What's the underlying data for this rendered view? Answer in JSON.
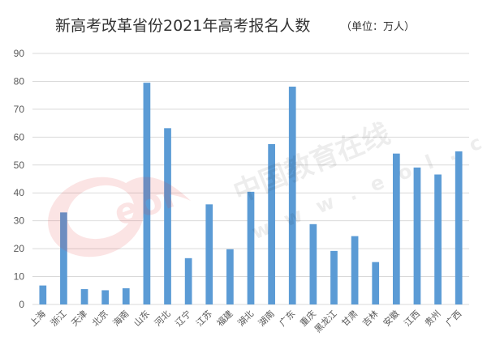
{
  "chart_data": {
    "type": "bar",
    "title": "新高考改革省份2021年高考报名人数",
    "unit": "（单位：万人）",
    "categories": [
      "上海",
      "浙江",
      "天津",
      "北京",
      "海南",
      "山东",
      "河北",
      "辽宁",
      "江苏",
      "福建",
      "湖北",
      "湖南",
      "广东",
      "重庆",
      "黑龙江",
      "甘肃",
      "吉林",
      "安徽",
      "江西",
      "贵州",
      "广西"
    ],
    "values": [
      6.8,
      33.0,
      5.5,
      5.1,
      5.8,
      79.5,
      63.2,
      16.6,
      35.9,
      19.8,
      40.4,
      57.5,
      78.1,
      28.8,
      19.2,
      24.5,
      15.2,
      54.1,
      49.1,
      46.6,
      54.9
    ],
    "ylim": [
      0,
      90
    ],
    "yticks": [
      0,
      10,
      20,
      30,
      40,
      50,
      60,
      70,
      80,
      90
    ],
    "grid": true,
    "bar_color": "#5b9bd5"
  },
  "watermark": {
    "text": "中国教育在线",
    "url": "w w w . e o l . c n",
    "logo_text": "eol",
    "logo_color": "#e8393b"
  }
}
